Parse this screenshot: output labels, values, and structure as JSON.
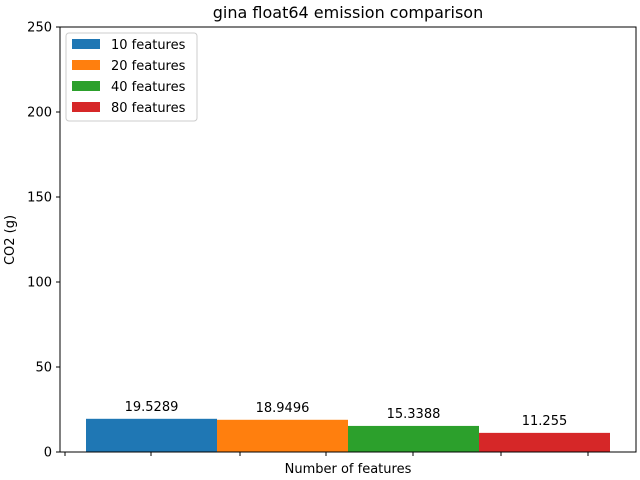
{
  "chart_data": {
    "type": "bar",
    "title": "gina float64 emission comparison",
    "xlabel": "Number of features",
    "ylabel": "CO2 (g)",
    "ylim": [
      0,
      250
    ],
    "yticks": [
      0,
      50,
      100,
      150,
      200,
      250
    ],
    "grid": false,
    "legend_position": "top-left",
    "series": [
      {
        "name": "10 features",
        "value": 19.5289,
        "label": "19.5289",
        "color": "#1f77b4"
      },
      {
        "name": "20 features",
        "value": 18.9496,
        "label": "18.9496",
        "color": "#ff7f0e"
      },
      {
        "name": "40 features",
        "value": 15.3388,
        "label": "15.3388",
        "color": "#2ca02c"
      },
      {
        "name": "80 features",
        "value": 11.255,
        "label": "11.255",
        "color": "#d62728"
      }
    ]
  }
}
